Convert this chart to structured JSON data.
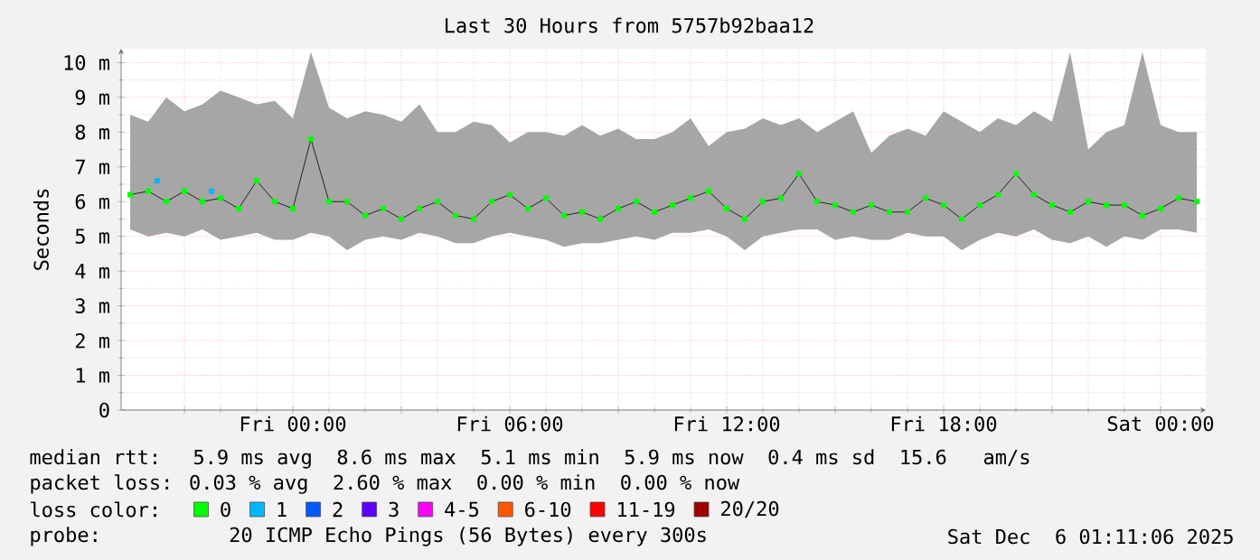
{
  "chart_data": {
    "type": "line",
    "title": "Last 30 Hours from 5757b92baa12",
    "ylabel": "Seconds",
    "legend_title": "loss color:",
    "legend": "bottom",
    "grid": true,
    "marker": "square",
    "line_style": "solid",
    "xlim": [
      "2025-12-04T19:15",
      "2025-12-06T01:15"
    ],
    "ylim": [
      0,
      10.4
    ],
    "xticks": [
      {
        "value": "2025-12-04T21:00",
        "label": null
      },
      {
        "value": "2025-12-05T00:00",
        "label": "Fri 00:00"
      },
      {
        "value": "2025-12-05T03:00",
        "label": null
      },
      {
        "value": "2025-12-05T06:00",
        "label": "Fri 06:00"
      },
      {
        "value": "2025-12-05T09:00",
        "label": null
      },
      {
        "value": "2025-12-05T12:00",
        "label": "Fri 12:00"
      },
      {
        "value": "2025-12-05T15:00",
        "label": null
      },
      {
        "value": "2025-12-05T18:00",
        "label": "Fri 18:00"
      },
      {
        "value": "2025-12-05T21:00",
        "label": null
      },
      {
        "value": "2025-12-06T00:00",
        "label": "Sat 00:00"
      }
    ],
    "yticks": [
      {
        "value": 0,
        "label": "0"
      },
      {
        "value": 1,
        "label": "1 m"
      },
      {
        "value": 2,
        "label": "2 m"
      },
      {
        "value": 3,
        "label": "3 m"
      },
      {
        "value": 4,
        "label": "4 m"
      },
      {
        "value": 5,
        "label": "5 m"
      },
      {
        "value": 6,
        "label": "6 m"
      },
      {
        "value": 7,
        "label": "7 m"
      },
      {
        "value": 8,
        "label": "8 m"
      },
      {
        "value": 9,
        "label": "9 m"
      },
      {
        "value": 10,
        "label": "10 m"
      }
    ],
    "x": [
      "2025-12-04T19:30",
      "2025-12-04T20:00",
      "2025-12-04T20:30",
      "2025-12-04T21:00",
      "2025-12-04T21:30",
      "2025-12-04T22:00",
      "2025-12-04T22:30",
      "2025-12-04T23:00",
      "2025-12-04T23:30",
      "2025-12-05T00:00",
      "2025-12-05T00:30",
      "2025-12-05T01:00",
      "2025-12-05T01:30",
      "2025-12-05T02:00",
      "2025-12-05T02:30",
      "2025-12-05T03:00",
      "2025-12-05T03:30",
      "2025-12-05T04:00",
      "2025-12-05T04:30",
      "2025-12-05T05:00",
      "2025-12-05T05:30",
      "2025-12-05T06:00",
      "2025-12-05T06:30",
      "2025-12-05T07:00",
      "2025-12-05T07:30",
      "2025-12-05T08:00",
      "2025-12-05T08:30",
      "2025-12-05T09:00",
      "2025-12-05T09:30",
      "2025-12-05T10:00",
      "2025-12-05T10:30",
      "2025-12-05T11:00",
      "2025-12-05T11:30",
      "2025-12-05T12:00",
      "2025-12-05T12:30",
      "2025-12-05T13:00",
      "2025-12-05T13:30",
      "2025-12-05T14:00",
      "2025-12-05T14:30",
      "2025-12-05T15:00",
      "2025-12-05T15:30",
      "2025-12-05T16:00",
      "2025-12-05T16:30",
      "2025-12-05T17:00",
      "2025-12-05T17:30",
      "2025-12-05T18:00",
      "2025-12-05T18:30",
      "2025-12-05T19:00",
      "2025-12-05T19:30",
      "2025-12-05T20:00",
      "2025-12-05T20:30",
      "2025-12-05T21:00",
      "2025-12-05T21:30",
      "2025-12-05T22:00",
      "2025-12-05T22:30",
      "2025-12-05T23:00",
      "2025-12-05T23:30",
      "2025-12-06T00:00",
      "2025-12-06T00:30",
      "2025-12-06T01:00"
    ],
    "series": [
      {
        "name": "0",
        "color": "#00ff00",
        "values": [
          6.2,
          6.3,
          6.0,
          6.3,
          6.0,
          6.1,
          5.8,
          6.6,
          6.0,
          5.8,
          7.8,
          6.0,
          6.0,
          5.6,
          5.8,
          5.5,
          5.8,
          6.0,
          5.6,
          5.5,
          6.0,
          6.2,
          5.8,
          6.1,
          5.6,
          5.7,
          5.5,
          5.8,
          6.0,
          5.7,
          5.9,
          6.1,
          6.3,
          5.8,
          5.5,
          6.0,
          6.1,
          6.8,
          6.0,
          5.9,
          5.7,
          5.9,
          5.7,
          5.7,
          6.1,
          5.9,
          5.5,
          5.9,
          6.2,
          6.8,
          6.2,
          5.9,
          5.7,
          6.0,
          5.9,
          5.9,
          5.6,
          5.8,
          6.1,
          6.0
        ],
        "lower": [
          5.2,
          5.0,
          5.1,
          5.0,
          5.2,
          4.9,
          5.0,
          5.1,
          4.9,
          4.9,
          5.1,
          5.0,
          4.6,
          4.9,
          5.0,
          4.9,
          5.1,
          5.0,
          4.8,
          4.8,
          5.0,
          5.1,
          5.0,
          4.9,
          4.7,
          4.8,
          4.8,
          4.9,
          5.0,
          4.9,
          5.1,
          5.1,
          5.2,
          5.0,
          4.6,
          5.0,
          5.1,
          5.2,
          5.2,
          4.9,
          5.0,
          4.9,
          4.9,
          5.1,
          5.0,
          5.0,
          4.6,
          4.9,
          5.1,
          5.0,
          5.2,
          4.9,
          4.8,
          5.0,
          4.7,
          5.0,
          4.9,
          5.2,
          5.2,
          5.1
        ],
        "upper": [
          8.5,
          8.3,
          9.0,
          8.6,
          8.8,
          9.2,
          9.0,
          8.8,
          8.9,
          8.4,
          10.3,
          8.7,
          8.4,
          8.6,
          8.5,
          8.3,
          8.8,
          8.0,
          8.0,
          8.3,
          8.2,
          7.7,
          8.0,
          8.0,
          7.9,
          8.2,
          7.9,
          8.1,
          7.8,
          7.8,
          8.0,
          8.4,
          7.6,
          8.0,
          8.1,
          8.4,
          8.2,
          8.4,
          8.0,
          8.3,
          8.6,
          7.4,
          7.9,
          8.1,
          7.9,
          8.6,
          8.3,
          8.0,
          8.4,
          8.2,
          8.6,
          8.3,
          10.3,
          7.5,
          8.0,
          8.2,
          10.3,
          8.2,
          8.0,
          8.0
        ]
      },
      {
        "name": "1",
        "color": "#00b8ff",
        "type": "scatter",
        "x": [
          "2025-12-04T20:15",
          "2025-12-04T21:45"
        ],
        "values": [
          6.6,
          6.3
        ]
      },
      {
        "name": "2",
        "color": "#0059ff",
        "values": [
          null,
          null,
          null,
          null,
          null,
          null,
          null,
          null,
          null,
          null,
          null,
          null,
          null,
          null,
          null,
          null,
          null,
          null,
          null,
          null,
          null,
          null,
          null,
          null,
          null,
          null,
          null,
          null,
          null,
          null,
          null,
          null,
          null,
          null,
          null,
          null,
          null,
          null,
          null,
          null,
          null,
          null,
          null,
          null,
          null,
          null,
          null,
          null,
          null,
          null,
          null,
          null,
          null,
          null,
          null,
          null,
          null,
          null,
          null,
          null
        ]
      },
      {
        "name": "3",
        "color": "#5e00ff",
        "values": [
          null,
          null,
          null,
          null,
          null,
          null,
          null,
          null,
          null,
          null,
          null,
          null,
          null,
          null,
          null,
          null,
          null,
          null,
          null,
          null,
          null,
          null,
          null,
          null,
          null,
          null,
          null,
          null,
          null,
          null,
          null,
          null,
          null,
          null,
          null,
          null,
          null,
          null,
          null,
          null,
          null,
          null,
          null,
          null,
          null,
          null,
          null,
          null,
          null,
          null,
          null,
          null,
          null,
          null,
          null,
          null,
          null,
          null,
          null,
          null
        ]
      },
      {
        "name": "4-5",
        "color": "#ff00ff",
        "values": [
          null,
          null,
          null,
          null,
          null,
          null,
          null,
          null,
          null,
          null,
          null,
          null,
          null,
          null,
          null,
          null,
          null,
          null,
          null,
          null,
          null,
          null,
          null,
          null,
          null,
          null,
          null,
          null,
          null,
          null,
          null,
          null,
          null,
          null,
          null,
          null,
          null,
          null,
          null,
          null,
          null,
          null,
          null,
          null,
          null,
          null,
          null,
          null,
          null,
          null,
          null,
          null,
          null,
          null,
          null,
          null,
          null,
          null,
          null,
          null
        ]
      },
      {
        "name": "6-10",
        "color": "#ff5500",
        "values": [
          null,
          null,
          null,
          null,
          null,
          null,
          null,
          null,
          null,
          null,
          null,
          null,
          null,
          null,
          null,
          null,
          null,
          null,
          null,
          null,
          null,
          null,
          null,
          null,
          null,
          null,
          null,
          null,
          null,
          null,
          null,
          null,
          null,
          null,
          null,
          null,
          null,
          null,
          null,
          null,
          null,
          null,
          null,
          null,
          null,
          null,
          null,
          null,
          null,
          null,
          null,
          null,
          null,
          null,
          null,
          null,
          null,
          null,
          null,
          null
        ]
      },
      {
        "name": "11-19",
        "color": "#ff0000",
        "values": [
          null,
          null,
          null,
          null,
          null,
          null,
          null,
          null,
          null,
          null,
          null,
          null,
          null,
          null,
          null,
          null,
          null,
          null,
          null,
          null,
          null,
          null,
          null,
          null,
          null,
          null,
          null,
          null,
          null,
          null,
          null,
          null,
          null,
          null,
          null,
          null,
          null,
          null,
          null,
          null,
          null,
          null,
          null,
          null,
          null,
          null,
          null,
          null,
          null,
          null,
          null,
          null,
          null,
          null,
          null,
          null,
          null,
          null,
          null,
          null
        ]
      },
      {
        "name": "20/20",
        "color": "#a10000",
        "values": [
          null,
          null,
          null,
          null,
          null,
          null,
          null,
          null,
          null,
          null,
          null,
          null,
          null,
          null,
          null,
          null,
          null,
          null,
          null,
          null,
          null,
          null,
          null,
          null,
          null,
          null,
          null,
          null,
          null,
          null,
          null,
          null,
          null,
          null,
          null,
          null,
          null,
          null,
          null,
          null,
          null,
          null,
          null,
          null,
          null,
          null,
          null,
          null,
          null,
          null,
          null,
          null,
          null,
          null,
          null,
          null,
          null,
          null,
          null,
          null
        ]
      }
    ],
    "annotations": [
      "median rtt:  5.9 ms avg  8.6 ms max  5.1 ms min  5.9 ms now  0.4 ms sd  15.6   am/s",
      "packet loss: 0.03 % avg  2.60 % max  0.00 % min  0.00 % now",
      "probe:        20 ICMP Echo Pings (56 Bytes) every 300s",
      "Sat Dec  6 01:11:06 2025"
    ]
  }
}
